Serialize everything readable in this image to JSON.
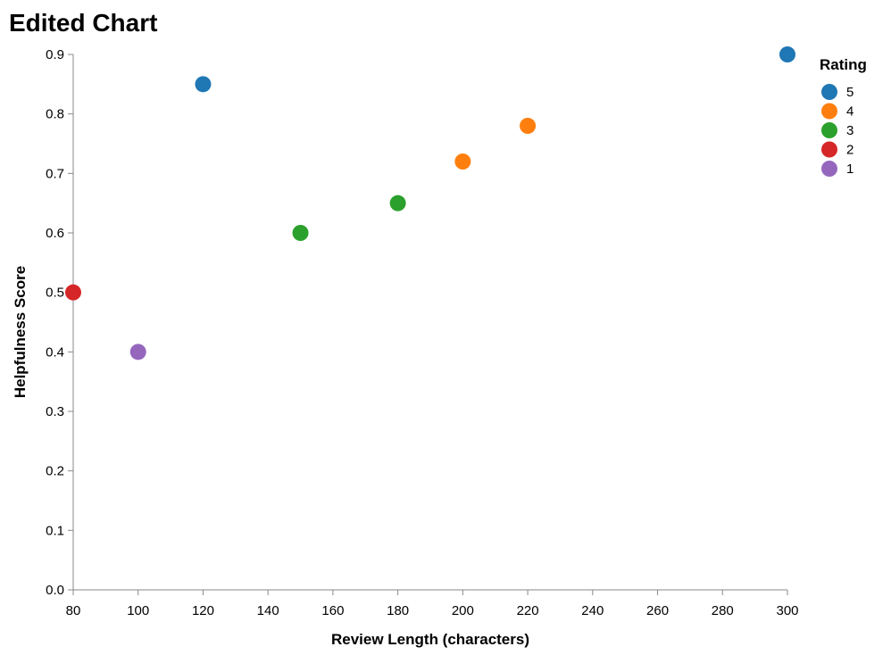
{
  "chart_data": {
    "type": "scatter",
    "title": "Edited Chart",
    "xlabel": "Review Length (characters)",
    "ylabel": "Helpfulness Score",
    "xlim": [
      80,
      300
    ],
    "ylim": [
      0,
      0.9
    ],
    "x_ticks": [
      80,
      100,
      120,
      140,
      160,
      180,
      200,
      220,
      240,
      260,
      280,
      300
    ],
    "y_ticks": [
      0.0,
      0.1,
      0.2,
      0.3,
      0.4,
      0.5,
      0.6,
      0.7,
      0.8,
      0.9
    ],
    "x_tick_labels": [
      "80",
      "100",
      "120",
      "140",
      "160",
      "180",
      "200",
      "220",
      "240",
      "260",
      "280",
      "300"
    ],
    "y_tick_labels": [
      "0.0",
      "0.1",
      "0.2",
      "0.3",
      "0.4",
      "0.5",
      "0.6",
      "0.7",
      "0.8",
      "0.9"
    ],
    "grid": false,
    "legend": {
      "title": "Rating",
      "placement": "right",
      "entries": [
        {
          "label": "5",
          "color": "#1f77b4"
        },
        {
          "label": "4",
          "color": "#ff7f0e"
        },
        {
          "label": "3",
          "color": "#2ca02c"
        },
        {
          "label": "2",
          "color": "#d62728"
        },
        {
          "label": "1",
          "color": "#9467bd"
        }
      ]
    },
    "points": [
      {
        "x": 120,
        "y": 0.85,
        "rating": "5"
      },
      {
        "x": 300,
        "y": 0.9,
        "rating": "5"
      },
      {
        "x": 200,
        "y": 0.72,
        "rating": "4"
      },
      {
        "x": 220,
        "y": 0.78,
        "rating": "4"
      },
      {
        "x": 150,
        "y": 0.6,
        "rating": "3"
      },
      {
        "x": 180,
        "y": 0.65,
        "rating": "3"
      },
      {
        "x": 80,
        "y": 0.5,
        "rating": "2"
      },
      {
        "x": 100,
        "y": 0.4,
        "rating": "1"
      }
    ]
  }
}
